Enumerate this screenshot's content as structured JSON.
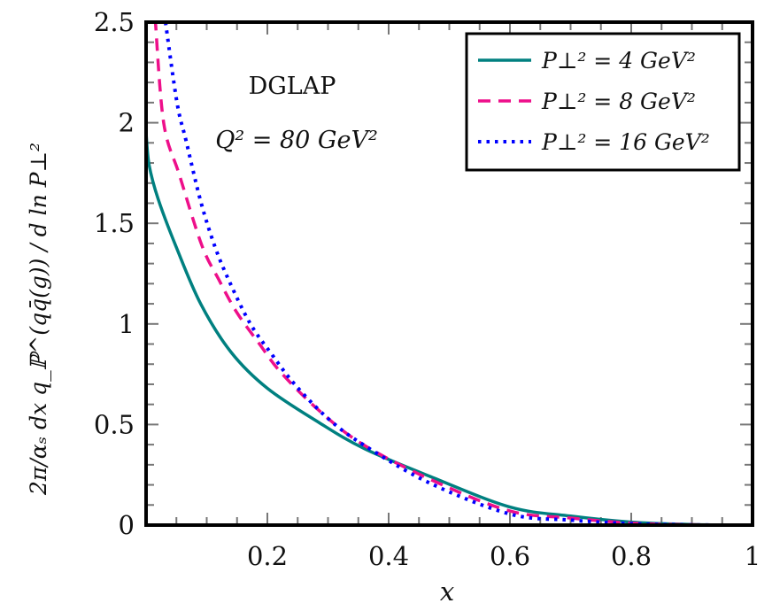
{
  "chart_data": {
    "type": "line",
    "xlabel": "x",
    "ylabel": "2π/αₛ dx q_ℙ^(qq̄(g)) / d ln P⊥²",
    "xlim": [
      0,
      1
    ],
    "ylim": [
      0,
      2.5
    ],
    "xticks": [
      0.2,
      0.4,
      0.6,
      0.8,
      1
    ],
    "xtick_labels": [
      "0.2",
      "0.4",
      "0.6",
      "0.8",
      "1"
    ],
    "yticks": [
      0,
      0.5,
      1,
      1.5,
      2,
      2.5
    ],
    "ytick_labels": [
      "0",
      "0.5",
      "1",
      "1.5",
      "2",
      "2.5"
    ],
    "grid": false,
    "legend_position": "top-right",
    "annotations": [
      "DGLAP",
      "Q² = 80 GeV²"
    ],
    "series": [
      {
        "name": "P⊥² = 4 GeV²",
        "color": "#008080",
        "style": "solid",
        "x": [
          0,
          0.005,
          0.02,
          0.05,
          0.09,
          0.14,
          0.2,
          0.285,
          0.36,
          0.47,
          0.6,
          0.7,
          0.8,
          0.9,
          1.0
        ],
        "y": [
          1.95,
          1.79,
          1.62,
          1.38,
          1.1,
          0.86,
          0.68,
          0.51,
          0.38,
          0.24,
          0.09,
          0.045,
          0.015,
          0.003,
          0
        ]
      },
      {
        "name": "P⊥² = 8 GeV²",
        "color": "#ee0f8a",
        "style": "dashed",
        "x": [
          0.015,
          0.029,
          0.055,
          0.092,
          0.12,
          0.149,
          0.187,
          0.222,
          0.285,
          0.358,
          0.474,
          0.6,
          0.7,
          0.8,
          0.9,
          1.0
        ],
        "y": [
          2.52,
          2.0,
          1.74,
          1.39,
          1.22,
          1.06,
          0.9,
          0.76,
          0.57,
          0.4,
          0.22,
          0.07,
          0.035,
          0.01,
          0.002,
          0
        ]
      },
      {
        "name": "P⊥² = 16 GeV²",
        "color": "#0000ff",
        "style": "dotted",
        "x": [
          0.032,
          0.051,
          0.066,
          0.09,
          0.114,
          0.139,
          0.172,
          0.207,
          0.245,
          0.3,
          0.358,
          0.467,
          0.6,
          0.7,
          0.8,
          0.9,
          1.0
        ],
        "y": [
          2.5,
          2.1,
          1.91,
          1.61,
          1.38,
          1.2,
          1.0,
          0.85,
          0.7,
          0.53,
          0.4,
          0.21,
          0.055,
          0.025,
          0.007,
          0.001,
          0
        ]
      }
    ]
  }
}
